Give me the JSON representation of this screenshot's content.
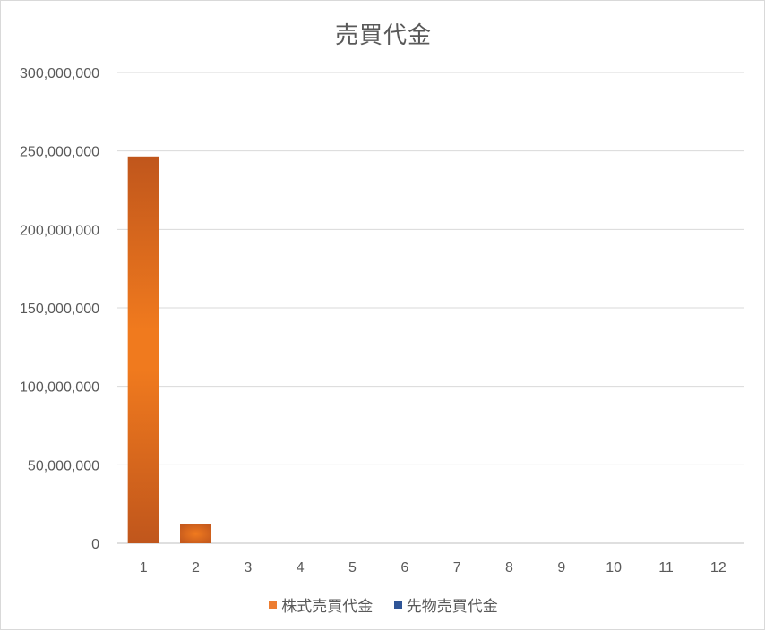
{
  "chart_data": {
    "type": "bar",
    "title": "売買代金",
    "categories": [
      "1",
      "2",
      "3",
      "4",
      "5",
      "6",
      "7",
      "8",
      "9",
      "10",
      "11",
      "12"
    ],
    "series": [
      {
        "name": "株式売買代金",
        "color": "#ed7d31",
        "values": [
          246500000,
          12000000,
          0,
          0,
          0,
          0,
          0,
          0,
          0,
          0,
          0,
          0
        ]
      },
      {
        "name": "先物売買代金",
        "color": "#2f5597",
        "values": [
          0,
          0,
          0,
          0,
          0,
          0,
          0,
          0,
          0,
          0,
          0,
          0
        ]
      }
    ],
    "yticks": [
      "0",
      "50,000,000",
      "100,000,000",
      "150,000,000",
      "200,000,000",
      "250,000,000",
      "300,000,000"
    ],
    "ylim": [
      0,
      300000000
    ],
    "grid": true,
    "legend_position": "bottom"
  }
}
